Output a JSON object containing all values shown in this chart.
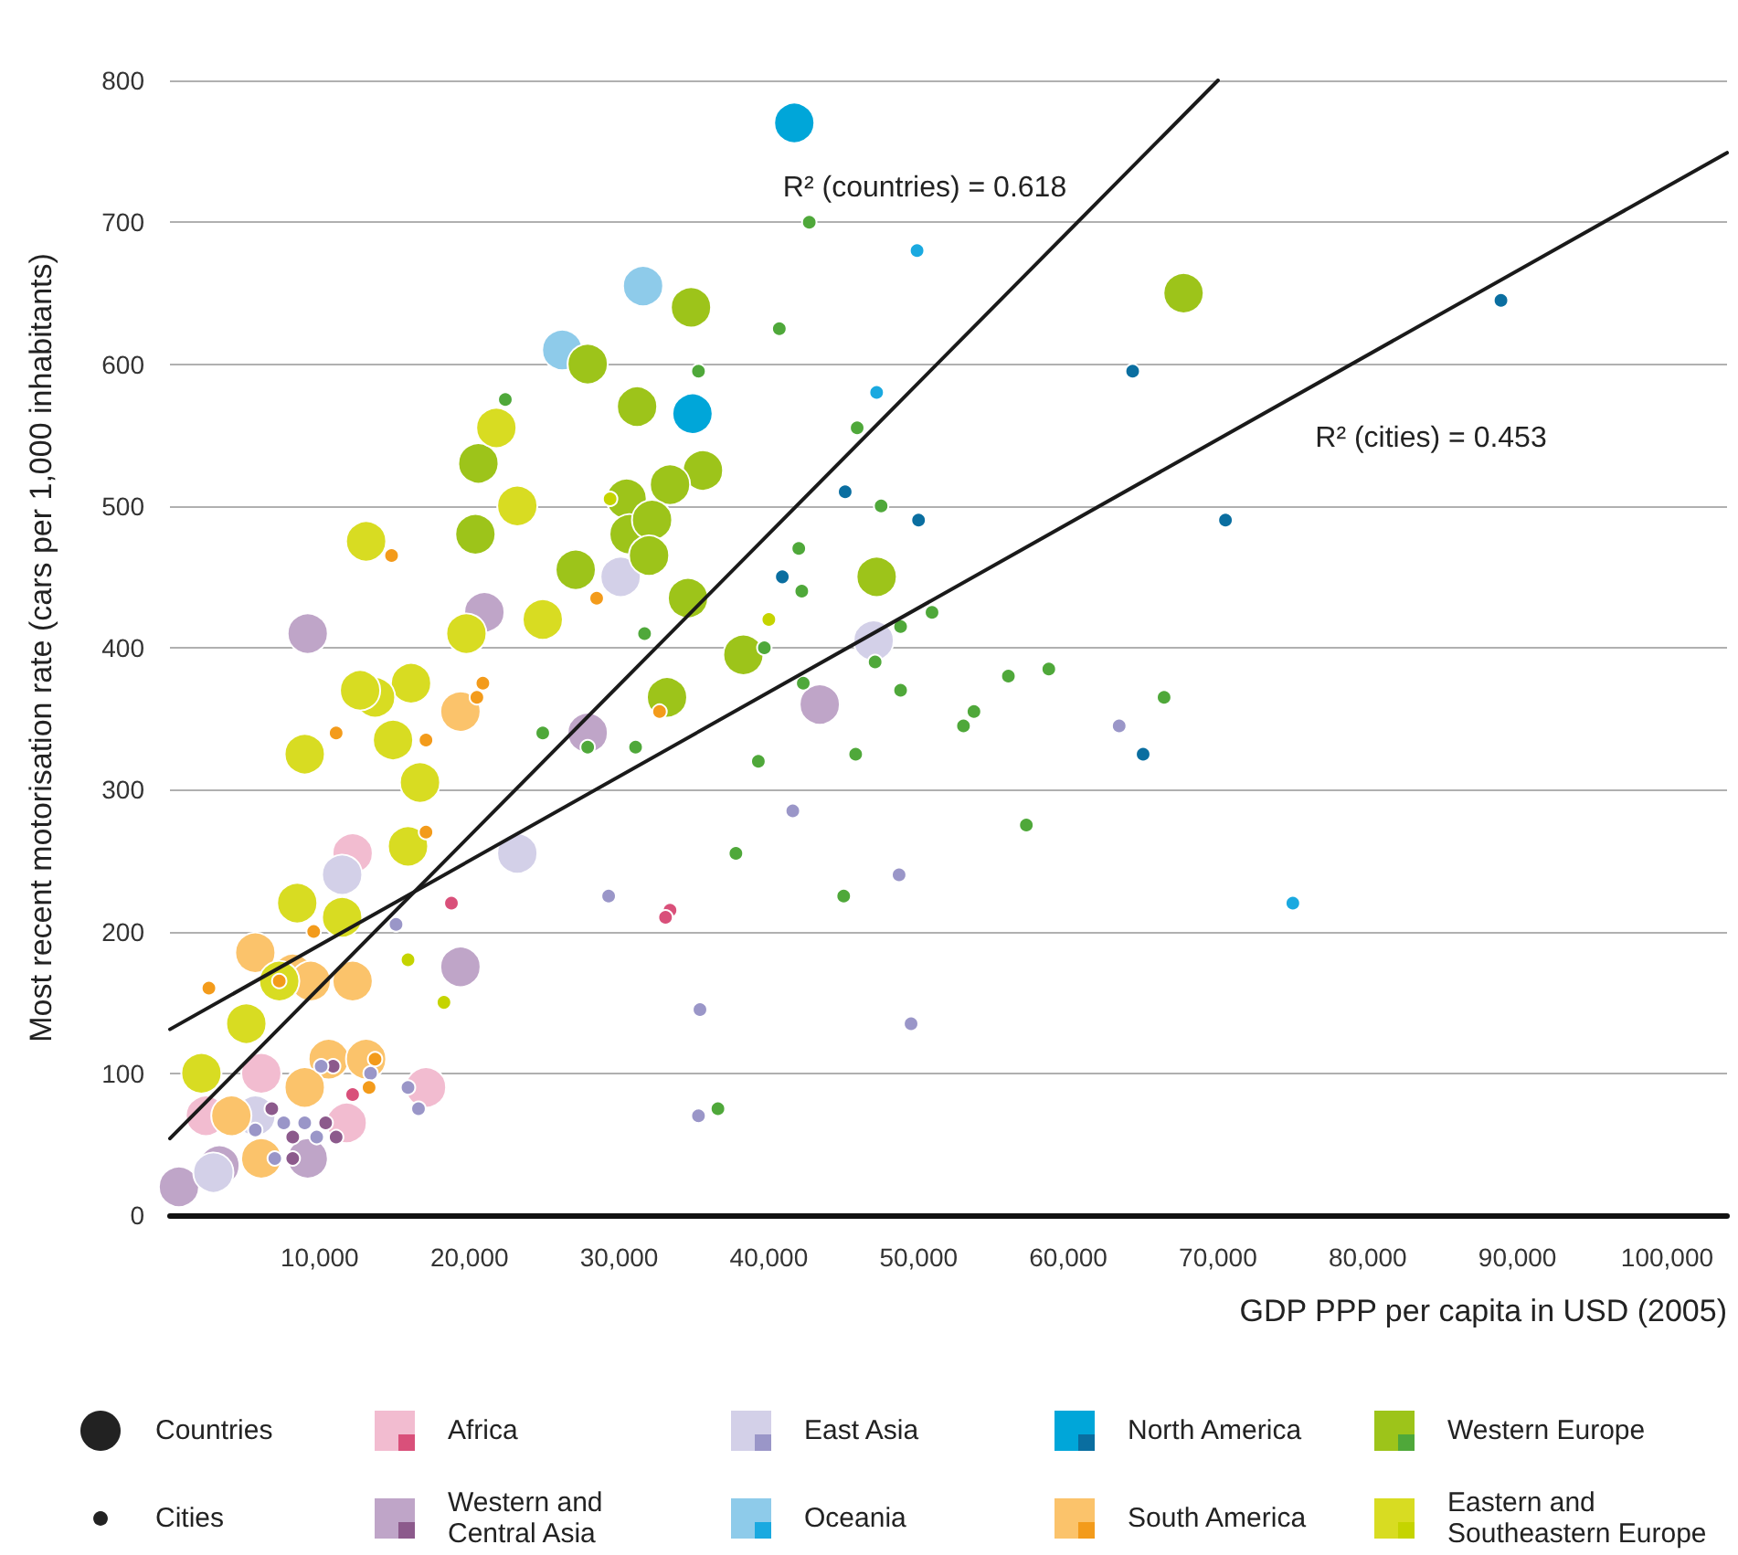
{
  "chart_data": {
    "type": "bubble",
    "xlabel": "GDP PPP per capita in USD (2005)",
    "ylabel": "Most recent motorisation rate (cars per 1,000 inhabitants)",
    "xlim": [
      0,
      104000
    ],
    "xticks": [
      {
        "value": 10000,
        "label": "10,000"
      },
      {
        "value": 20000,
        "label": "20,000"
      },
      {
        "value": 30000,
        "label": "30,000"
      },
      {
        "value": 40000,
        "label": "40,000"
      },
      {
        "value": 50000,
        "label": "50,000"
      },
      {
        "value": 60000,
        "label": "60,000"
      },
      {
        "value": 70000,
        "label": "70,000"
      },
      {
        "value": 80000,
        "label": "80,000"
      },
      {
        "value": 90000,
        "label": "90,000"
      },
      {
        "value": 100000,
        "label": "100,000"
      }
    ],
    "ylim": [
      0,
      800
    ],
    "yticks": [
      0,
      100,
      200,
      300,
      400,
      500,
      600,
      700,
      800
    ],
    "grid": "y",
    "legend": "bottom",
    "size_legend": [
      {
        "value": 1,
        "label": "Countries"
      },
      {
        "value": 0.13,
        "label": "Cities"
      }
    ],
    "annotations": [
      "R² (countries) = 0.618",
      "R² (cities) = 0.453"
    ],
    "series": [
      {
        "name": "Africa",
        "color": "#f2bcd0",
        "x": [
          17100,
          11800,
          6100,
          12200,
          2400
        ],
        "values": [
          90,
          65,
          100,
          255,
          70
        ],
        "sizes": [
          1,
          1,
          1,
          1,
          1
        ]
      },
      {
        "color": "#d9507a",
        "x": [
          18800,
          12200,
          33400,
          33100
        ],
        "values": [
          220,
          85,
          215,
          210
        ],
        "sizes": [
          0.13,
          0.13,
          0.13,
          0.13
        ]
      },
      {
        "name": "Western and Central Asia",
        "color": "#bfa5c8",
        "x": [
          9200,
          21000,
          27900,
          43400,
          19400,
          600,
          9200,
          3300
        ],
        "values": [
          410,
          425,
          340,
          360,
          175,
          20,
          40,
          35
        ],
        "sizes": [
          1,
          1,
          1,
          1,
          1,
          1,
          1,
          1
        ]
      },
      {
        "color": "#8c5a8c",
        "x": [
          6800,
          10400,
          8200,
          8200,
          11100,
          10900
        ],
        "values": [
          75,
          65,
          55,
          40,
          55,
          105
        ],
        "sizes": [
          0.13,
          0.13,
          0.13,
          0.13,
          0.13,
          0.13
        ]
      },
      {
        "name": "East Asia",
        "color": "#d3d0e8",
        "x": [
          47000,
          30100,
          23200,
          11500,
          5700,
          2900
        ],
        "values": [
          405,
          450,
          255,
          240,
          70,
          30
        ],
        "sizes": [
          1,
          1,
          1,
          1,
          1,
          1
        ]
      },
      {
        "color": "#9a96c8",
        "x": [
          29300,
          41600,
          48700,
          35400,
          49500,
          35300,
          63400,
          15100,
          10100,
          13400,
          15900,
          16600,
          7600,
          9000,
          9800,
          5700,
          7000
        ],
        "values": [
          225,
          285,
          240,
          145,
          135,
          70,
          345,
          205,
          105,
          100,
          90,
          75,
          65,
          65,
          55,
          60,
          40
        ],
        "sizes": [
          0.13,
          0.13,
          0.13,
          0.13,
          0.13,
          0.13,
          0.13,
          0.13,
          0.13,
          0.13,
          0.13,
          0.13,
          0.13,
          0.13,
          0.13,
          0.13,
          0.13
        ]
      },
      {
        "name": "Oceania",
        "color": "#8ecbea",
        "x": [
          26200,
          31600
        ],
        "values": [
          610,
          655
        ],
        "sizes": [
          1,
          1
        ]
      },
      {
        "color": "#1aa9e0",
        "x": [
          49900,
          47200,
          75000
        ],
        "values": [
          680,
          580,
          220
        ],
        "sizes": [
          0.13,
          0.13,
          0.13
        ]
      },
      {
        "name": "North America",
        "color": "#00a6d9",
        "x": [
          41700,
          34900
        ],
        "values": [
          770,
          565
        ],
        "sizes": [
          1,
          1
        ]
      },
      {
        "color": "#0a6ea0",
        "x": [
          88900,
          64300,
          50000,
          70500,
          65000,
          45100,
          40900
        ],
        "values": [
          645,
          595,
          490,
          490,
          325,
          510,
          450
        ],
        "sizes": [
          0.13,
          0.13,
          0.13,
          0.13,
          0.13,
          0.13,
          0.13
        ]
      },
      {
        "name": "South America",
        "color": "#fbc36b",
        "x": [
          19400,
          5700,
          8200,
          9400,
          12200,
          10600,
          9000,
          13100,
          4100,
          6100
        ],
        "values": [
          355,
          185,
          170,
          165,
          165,
          110,
          90,
          110,
          70,
          40
        ],
        "sizes": [
          1,
          1,
          1,
          1,
          1,
          1,
          1,
          1,
          1,
          1
        ]
      },
      {
        "color": "#f39b1b",
        "x": [
          14800,
          20900,
          20500,
          11100,
          17100,
          28500,
          32700,
          17100,
          9600,
          2600,
          7300,
          13700,
          13300
        ],
        "values": [
          465,
          375,
          365,
          340,
          335,
          435,
          355,
          270,
          200,
          160,
          165,
          110,
          90
        ],
        "sizes": [
          0.13,
          0.13,
          0.13,
          0.13,
          0.13,
          0.13,
          0.13,
          0.13,
          0.13,
          0.13,
          0.13,
          0.13,
          0.13
        ]
      },
      {
        "name": "Western Europe",
        "color": "#9dc41a",
        "x": [
          67700,
          34800,
          27900,
          31200,
          35600,
          20600,
          30500,
          33400,
          30700,
          32200,
          32000,
          20400,
          27100,
          34600,
          38300,
          33200,
          47200
        ],
        "values": [
          650,
          640,
          600,
          570,
          525,
          530,
          505,
          515,
          480,
          490,
          465,
          480,
          455,
          435,
          395,
          365,
          450
        ],
        "sizes": [
          1,
          1,
          1,
          1,
          1,
          1,
          1,
          1,
          1,
          1,
          1,
          1,
          1,
          1,
          1,
          1,
          1
        ]
      },
      {
        "color": "#4fa83a",
        "x": [
          42700,
          40700,
          35300,
          22400,
          45900,
          47500,
          42000,
          42200,
          31700,
          39700,
          42300,
          48800,
          48800,
          24900,
          31100,
          27900,
          45800,
          39300,
          50900,
          47100,
          56000,
          58700,
          66400,
          53700,
          53000,
          57200,
          45000,
          37800,
          36600
        ],
        "values": [
          700,
          625,
          595,
          575,
          555,
          500,
          470,
          440,
          410,
          400,
          375,
          415,
          370,
          340,
          330,
          330,
          325,
          320,
          425,
          390,
          380,
          385,
          365,
          355,
          345,
          275,
          225,
          255,
          75
        ],
        "sizes": [
          0.13,
          0.13,
          0.13,
          0.13,
          0.13,
          0.13,
          0.13,
          0.13,
          0.13,
          0.13,
          0.13,
          0.13,
          0.13,
          0.13,
          0.13,
          0.13,
          0.13,
          0.13,
          0.13,
          0.13,
          0.13,
          0.13,
          0.13,
          0.13,
          0.13,
          0.13,
          0.13,
          0.13,
          0.13
        ]
      },
      {
        "name": "Eastern and Southeastern Europe",
        "color": "#d8dc22",
        "x": [
          21800,
          23200,
          24900,
          19800,
          16100,
          13700,
          14900,
          16700,
          13100,
          9000,
          12700,
          15900,
          8500,
          11500,
          5100,
          2100,
          7300
        ],
        "values": [
          555,
          500,
          420,
          410,
          375,
          365,
          335,
          305,
          475,
          325,
          370,
          260,
          220,
          210,
          135,
          100,
          165
        ],
        "sizes": [
          1,
          1,
          1,
          1,
          1,
          1,
          1,
          1,
          1,
          1,
          1,
          1,
          1,
          1,
          1,
          1,
          1
        ]
      },
      {
        "color": "#c5d400",
        "x": [
          29400,
          40000,
          15900,
          18300
        ],
        "values": [
          505,
          420,
          180,
          150
        ],
        "sizes": [
          0.13,
          0.13,
          0.13,
          0.13
        ]
      },
      {
        "type": "line",
        "color": "#1a1a1a",
        "x": [
          0,
          70000
        ],
        "values": [
          54,
          800
        ]
      },
      {
        "type": "line",
        "color": "#1a1a1a",
        "x": [
          0,
          104000
        ],
        "values": [
          131,
          749
        ]
      }
    ]
  }
}
